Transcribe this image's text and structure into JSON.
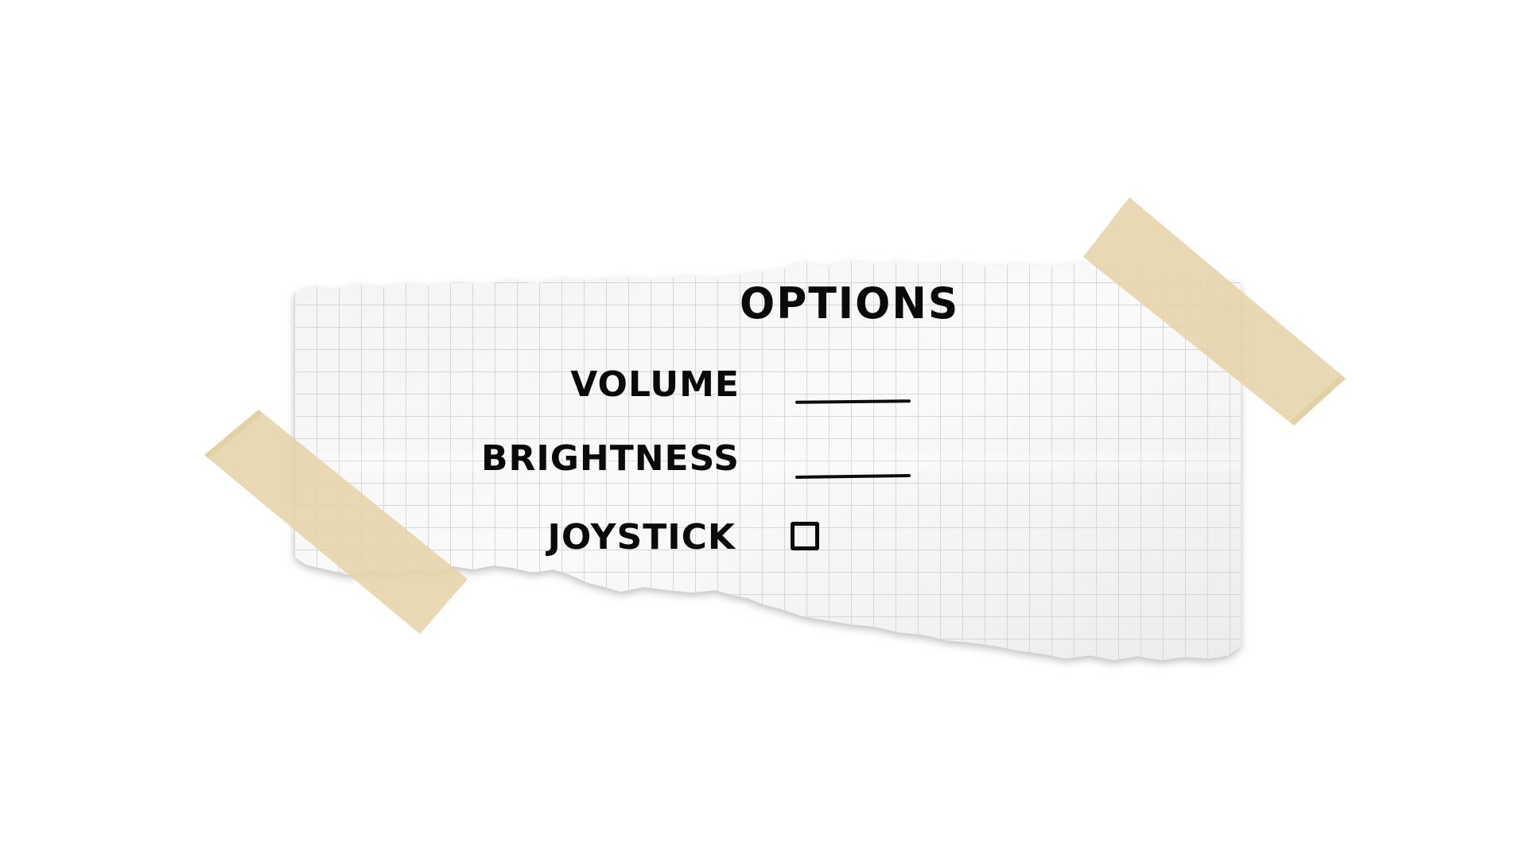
{
  "options_menu": {
    "title": "OPTIONS",
    "volume": {
      "label": "VOLUME"
    },
    "brightness": {
      "label": "BRIGHTNESS"
    },
    "joystick": {
      "label": "JOYSTICK",
      "checked": false
    }
  },
  "colors": {
    "paper": "#f2f2f2",
    "grid_line": "#d8d8d8",
    "tape": "#e6d6ae",
    "ink": "#0a0a0a",
    "background": "#ffffff"
  }
}
